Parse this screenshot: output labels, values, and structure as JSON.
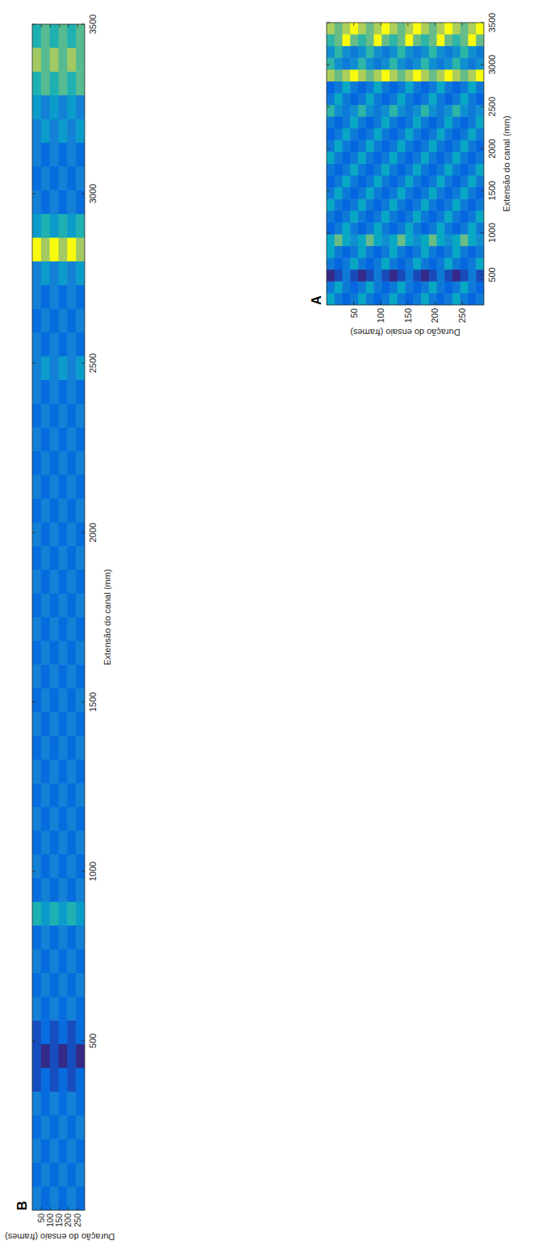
{
  "chart_data": [
    {
      "type": "heatmap",
      "panel": "A",
      "x_label": "Extensão do canal (mm)",
      "y_label": "Duração do ensaio (frames)",
      "xlim": [
        140,
        3500
      ],
      "ylim": [
        0,
        290
      ],
      "xticks": [
        500,
        1000,
        1500,
        2000,
        2500,
        3000,
        3500
      ],
      "yticks": [
        50,
        100,
        150,
        200,
        250
      ],
      "cells": [
        [
          5,
          3,
          0,
          3,
          5,
          5,
          2,
          3,
          5,
          3,
          2,
          3,
          5,
          3,
          2,
          3,
          6,
          3,
          2,
          8,
          6,
          4,
          6,
          8
        ],
        [
          3,
          5,
          1,
          2,
          3,
          7,
          3,
          2,
          3,
          5,
          3,
          2,
          3,
          5,
          3,
          2,
          4,
          5,
          3,
          7,
          4,
          6,
          7,
          7
        ],
        [
          2,
          3,
          3,
          3,
          2,
          5,
          5,
          3,
          2,
          3,
          5,
          3,
          2,
          3,
          5,
          3,
          3,
          3,
          5,
          8,
          3,
          4,
          9,
          8
        ],
        [
          3,
          2,
          1,
          5,
          3,
          4,
          3,
          5,
          3,
          2,
          3,
          5,
          3,
          2,
          3,
          5,
          4,
          2,
          3,
          9,
          4,
          3,
          7,
          9
        ],
        [
          5,
          3,
          0,
          3,
          5,
          5,
          2,
          3,
          5,
          3,
          2,
          3,
          5,
          3,
          2,
          3,
          6,
          3,
          2,
          8,
          6,
          4,
          6,
          8
        ],
        [
          3,
          5,
          1,
          2,
          3,
          7,
          3,
          2,
          3,
          5,
          3,
          2,
          3,
          5,
          3,
          2,
          4,
          5,
          3,
          7,
          4,
          6,
          7,
          7
        ],
        [
          2,
          3,
          3,
          3,
          2,
          5,
          5,
          3,
          2,
          3,
          5,
          3,
          2,
          3,
          5,
          3,
          3,
          3,
          5,
          8,
          3,
          4,
          9,
          8
        ],
        [
          3,
          2,
          1,
          5,
          3,
          4,
          3,
          5,
          3,
          2,
          3,
          5,
          3,
          2,
          3,
          5,
          4,
          2,
          3,
          9,
          4,
          3,
          7,
          9
        ],
        [
          5,
          3,
          0,
          3,
          5,
          5,
          2,
          3,
          5,
          3,
          2,
          3,
          5,
          3,
          2,
          3,
          6,
          3,
          2,
          8,
          6,
          4,
          6,
          8
        ],
        [
          3,
          5,
          1,
          2,
          3,
          7,
          3,
          2,
          3,
          5,
          3,
          2,
          3,
          5,
          3,
          2,
          4,
          5,
          3,
          7,
          4,
          6,
          7,
          7
        ],
        [
          2,
          3,
          3,
          3,
          2,
          5,
          5,
          3,
          2,
          3,
          5,
          3,
          2,
          3,
          5,
          3,
          3,
          3,
          5,
          8,
          3,
          4,
          9,
          8
        ],
        [
          3,
          2,
          1,
          5,
          3,
          4,
          3,
          5,
          3,
          2,
          3,
          5,
          3,
          2,
          3,
          5,
          4,
          2,
          3,
          9,
          4,
          3,
          7,
          9
        ],
        [
          5,
          3,
          0,
          3,
          5,
          5,
          2,
          3,
          5,
          3,
          2,
          3,
          5,
          3,
          2,
          3,
          6,
          3,
          2,
          8,
          6,
          4,
          6,
          8
        ],
        [
          3,
          5,
          1,
          2,
          3,
          7,
          3,
          2,
          3,
          5,
          3,
          2,
          3,
          5,
          3,
          2,
          4,
          5,
          3,
          7,
          4,
          6,
          7,
          7
        ],
        [
          2,
          3,
          3,
          3,
          2,
          5,
          5,
          3,
          2,
          3,
          5,
          3,
          2,
          3,
          5,
          3,
          3,
          3,
          5,
          8,
          3,
          4,
          9,
          8
        ],
        [
          3,
          2,
          1,
          5,
          3,
          4,
          3,
          5,
          3,
          2,
          3,
          5,
          3,
          2,
          3,
          5,
          4,
          2,
          3,
          9,
          4,
          3,
          7,
          9
        ],
        [
          5,
          3,
          0,
          3,
          5,
          5,
          2,
          3,
          5,
          3,
          2,
          3,
          5,
          3,
          2,
          3,
          6,
          3,
          2,
          8,
          6,
          4,
          6,
          8
        ],
        [
          3,
          5,
          1,
          2,
          3,
          7,
          3,
          2,
          3,
          5,
          3,
          2,
          3,
          5,
          3,
          2,
          4,
          5,
          3,
          7,
          4,
          6,
          7,
          7
        ],
        [
          2,
          3,
          3,
          3,
          2,
          5,
          5,
          3,
          2,
          3,
          5,
          3,
          2,
          3,
          5,
          3,
          3,
          3,
          5,
          8,
          3,
          4,
          9,
          8
        ],
        [
          3,
          2,
          1,
          5,
          3,
          4,
          3,
          5,
          3,
          2,
          3,
          5,
          3,
          2,
          3,
          5,
          4,
          2,
          3,
          9,
          4,
          3,
          7,
          9
        ]
      ]
    },
    {
      "type": "heatmap",
      "panel": "B",
      "x_label": "Extensão do canal (mm)",
      "y_label": "Duração do ensaio (frames)",
      "xlim": [
        0,
        3500
      ],
      "ylim": [
        0,
        290
      ],
      "xticks": [
        500,
        1000,
        1500,
        2000,
        2500,
        3000,
        3500
      ],
      "yticks": [
        50,
        100,
        150,
        200,
        250
      ],
      "cells": [
        [
          4,
          3,
          4,
          3,
          4,
          2,
          2,
          2,
          4,
          3,
          4,
          3,
          6,
          3,
          4,
          3,
          4,
          3,
          4,
          3,
          4,
          3,
          4,
          3,
          4,
          3,
          4,
          3,
          4,
          3,
          4,
          3,
          4,
          3,
          4,
          4,
          4,
          3,
          4,
          4,
          9,
          5,
          4,
          3,
          4,
          4,
          5,
          6,
          8,
          6
        ],
        [
          3,
          4,
          3,
          4,
          3,
          3,
          1,
          3,
          3,
          4,
          3,
          4,
          5,
          4,
          3,
          4,
          3,
          4,
          3,
          4,
          3,
          4,
          3,
          4,
          3,
          4,
          3,
          4,
          3,
          4,
          3,
          4,
          3,
          4,
          3,
          5,
          3,
          4,
          3,
          5,
          8,
          6,
          3,
          4,
          3,
          5,
          4,
          7,
          7,
          7
        ],
        [
          4,
          3,
          4,
          3,
          4,
          2,
          2,
          2,
          4,
          3,
          4,
          3,
          6,
          3,
          4,
          3,
          4,
          3,
          4,
          3,
          4,
          3,
          4,
          3,
          4,
          3,
          4,
          3,
          4,
          3,
          4,
          3,
          4,
          3,
          4,
          4,
          4,
          3,
          4,
          4,
          9,
          5,
          4,
          3,
          4,
          4,
          5,
          6,
          8,
          6
        ],
        [
          3,
          4,
          3,
          4,
          3,
          3,
          1,
          3,
          3,
          4,
          3,
          4,
          5,
          4,
          3,
          4,
          3,
          4,
          3,
          4,
          3,
          4,
          3,
          4,
          3,
          4,
          3,
          4,
          3,
          4,
          3,
          4,
          3,
          4,
          3,
          5,
          3,
          4,
          3,
          5,
          8,
          6,
          3,
          4,
          3,
          5,
          4,
          7,
          7,
          7
        ],
        [
          4,
          3,
          4,
          3,
          4,
          2,
          2,
          2,
          4,
          3,
          4,
          3,
          6,
          3,
          4,
          3,
          4,
          3,
          4,
          3,
          4,
          3,
          4,
          3,
          4,
          3,
          4,
          3,
          4,
          3,
          4,
          3,
          4,
          3,
          4,
          4,
          4,
          3,
          4,
          4,
          9,
          5,
          4,
          3,
          4,
          4,
          5,
          6,
          8,
          6
        ],
        [
          3,
          4,
          3,
          4,
          3,
          3,
          1,
          3,
          3,
          4,
          3,
          4,
          5,
          4,
          3,
          4,
          3,
          4,
          3,
          4,
          3,
          4,
          3,
          4,
          3,
          4,
          3,
          4,
          3,
          4,
          3,
          4,
          3,
          4,
          3,
          5,
          3,
          4,
          3,
          5,
          8,
          6,
          3,
          4,
          3,
          5,
          4,
          7,
          7,
          7
        ]
      ]
    }
  ]
}
